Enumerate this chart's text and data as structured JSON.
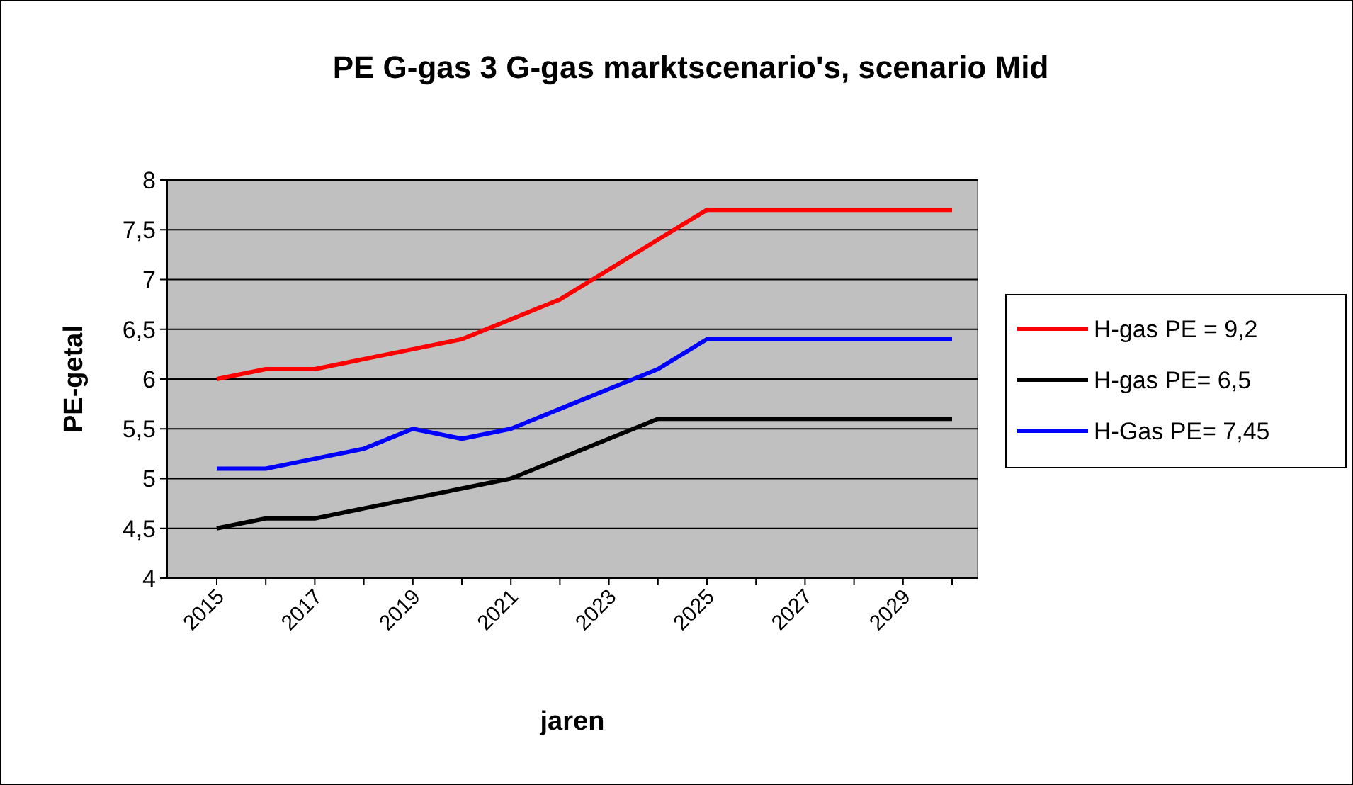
{
  "chart_data": {
    "type": "line",
    "title": "PE G-gas 3 G-gas marktscenario's, scenario Mid",
    "xlabel": "jaren",
    "ylabel": "PE-getal",
    "categories": [
      "2015",
      null,
      "2017",
      null,
      "2019",
      null,
      "2021",
      null,
      "2023",
      null,
      "2025",
      null,
      "2027",
      null,
      "2029",
      null
    ],
    "series": [
      {
        "name": "H-gas PE = 9,2",
        "color": "#ff0000",
        "values": [
          6.0,
          6.1,
          6.1,
          6.2,
          6.3,
          6.4,
          6.6,
          6.8,
          7.1,
          7.4,
          7.7,
          7.7,
          7.7,
          7.7,
          7.7,
          7.7
        ]
      },
      {
        "name": "H-gas PE= 6,5",
        "color": "#000000",
        "values": [
          4.5,
          4.6,
          4.6,
          4.7,
          4.8,
          4.9,
          5.0,
          5.2,
          5.4,
          5.6,
          5.6,
          5.6,
          5.6,
          5.6,
          5.6,
          5.6
        ]
      },
      {
        "name": "H-Gas PE= 7,45",
        "color": "#0000ff",
        "values": [
          5.1,
          5.1,
          5.2,
          5.3,
          5.5,
          5.4,
          5.5,
          5.7,
          5.9,
          6.1,
          6.4,
          6.4,
          6.4,
          6.4,
          6.4,
          6.4
        ]
      }
    ],
    "ylim": [
      4,
      8
    ],
    "yticks": [
      4,
      {
        "value": 4.5,
        "label": "4,5"
      },
      5,
      {
        "value": 5.5,
        "label": "5,5"
      },
      6,
      {
        "value": 6.5,
        "label": "6,5"
      },
      7,
      {
        "value": 7.5,
        "label": "7,5"
      },
      8
    ],
    "grid": "y",
    "legend": "right",
    "marker": "none",
    "line_style": "solid"
  }
}
